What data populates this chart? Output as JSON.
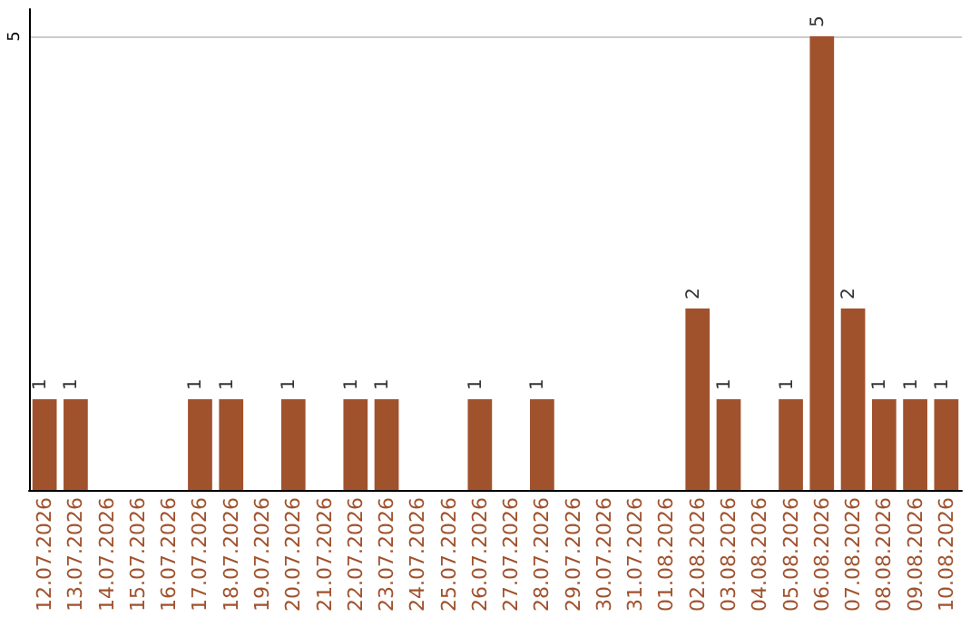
{
  "chart_data": {
    "type": "bar",
    "categories": [
      "12.07.2026",
      "13.07.2026",
      "14.07.2026",
      "15.07.2026",
      "16.07.2026",
      "17.07.2026",
      "18.07.2026",
      "19.07.2026",
      "20.07.2026",
      "21.07.2026",
      "22.07.2026",
      "23.07.2026",
      "24.07.2026",
      "25.07.2026",
      "26.07.2026",
      "27.07.2026",
      "28.07.2026",
      "29.07.2026",
      "30.07.2026",
      "31.07.2026",
      "01.08.2026",
      "02.08.2026",
      "03.08.2026",
      "04.08.2026",
      "05.08.2026",
      "06.08.2026",
      "07.08.2026",
      "08.08.2026",
      "09.08.2026",
      "10.08.2026"
    ],
    "values": [
      1,
      1,
      0,
      0,
      0,
      1,
      1,
      0,
      1,
      0,
      1,
      1,
      0,
      0,
      1,
      0,
      1,
      0,
      0,
      0,
      0,
      2,
      1,
      0,
      1,
      5,
      2,
      1,
      1,
      1
    ],
    "value_labels": [
      "1",
      "1",
      null,
      null,
      null,
      "1",
      "1",
      null,
      "1",
      null,
      "1",
      "1",
      null,
      null,
      "1",
      null,
      "1",
      null,
      null,
      null,
      null,
      "2",
      "1",
      null,
      "1",
      "5",
      "2",
      "1",
      "1",
      "1"
    ],
    "color": "#a0522d",
    "ylim": [
      0,
      5.3
    ],
    "yticks": [
      5
    ],
    "grid": "y"
  }
}
